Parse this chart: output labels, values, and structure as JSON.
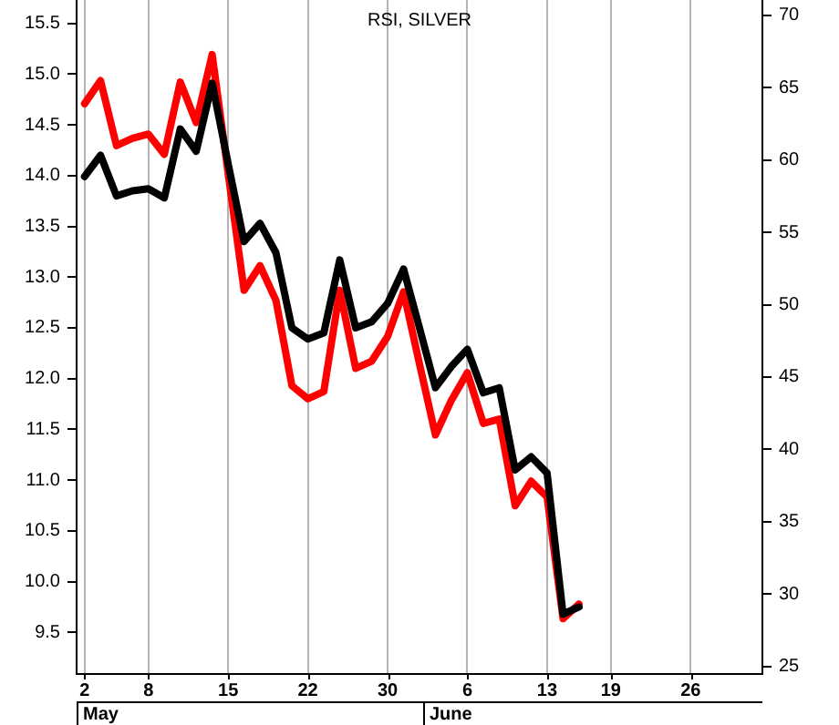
{
  "chart_data": {
    "type": "line",
    "title": "RSI, SILVER",
    "categories": [
      "2",
      null,
      null,
      null,
      "8",
      null,
      null,
      null,
      null,
      "15",
      null,
      null,
      null,
      null,
      "22",
      null,
      null,
      null,
      null,
      "30",
      null,
      null,
      null,
      null,
      "6",
      null,
      null,
      null,
      null,
      "13",
      null,
      null,
      null,
      "19",
      null,
      null,
      null,
      null,
      "26",
      null,
      null,
      null,
      null
    ],
    "series": [
      {
        "color": "#000000",
        "axis": "y",
        "values": [
          13.99,
          14.2,
          13.8,
          13.85,
          13.87,
          13.78,
          14.46,
          14.24,
          14.91,
          14.12,
          13.35,
          13.53,
          13.24,
          12.5,
          12.39,
          12.45,
          13.17,
          12.5,
          12.56,
          12.74,
          13.08,
          12.5,
          11.91,
          12.12,
          12.29,
          11.86,
          11.91,
          11.1,
          11.23,
          11.07,
          9.68,
          9.75,
          null,
          null,
          null,
          null,
          null,
          null,
          null,
          null,
          null,
          null,
          null
        ]
      },
      {
        "color": "#ff0000",
        "axis": "y2",
        "values": [
          63.9,
          65.5,
          61.0,
          61.5,
          61.8,
          60.4,
          65.4,
          62.6,
          67.3,
          59.1,
          51.0,
          52.7,
          50.3,
          44.4,
          43.5,
          44.0,
          51.0,
          45.6,
          46.1,
          47.8,
          50.9,
          45.9,
          41.0,
          43.4,
          45.3,
          41.8,
          42.1,
          36.1,
          37.8,
          36.7,
          28.3,
          29.3,
          null,
          null,
          null,
          null,
          null,
          null,
          null,
          null,
          null,
          null,
          null
        ]
      }
    ],
    "ylim": [
      9.09,
      15.73
    ],
    "yticks": [
      9.5,
      {
        "value": 10,
        "label": "10.0"
      },
      10.5,
      {
        "value": 11,
        "label": "11.0"
      },
      11.5,
      {
        "value": 12,
        "label": "12.0"
      },
      12.5,
      {
        "value": 13,
        "label": "13.0"
      },
      13.5,
      {
        "value": 14,
        "label": "14.0"
      },
      14.5,
      {
        "value": 15,
        "label": "15.0"
      },
      15.5
    ],
    "y2lim": [
      24.47,
      71.07
    ],
    "y2ticks": [
      25,
      30,
      35,
      40,
      45,
      50,
      55,
      60,
      65,
      70
    ],
    "annotations": [
      "May",
      "June"
    ],
    "grid": "x",
    "legend": false,
    "marker": "none",
    "line_style": "solid"
  }
}
